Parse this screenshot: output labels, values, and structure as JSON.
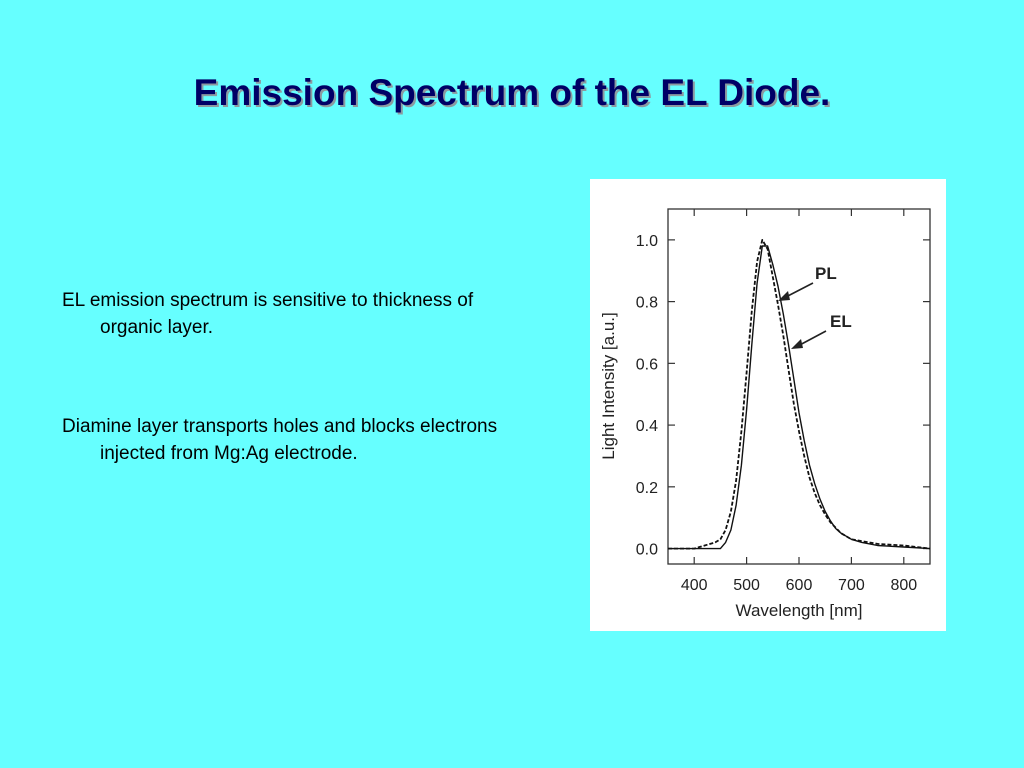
{
  "slide": {
    "title": "Emission Spectrum of the EL Diode.",
    "bullets": [
      "EL emission spectrum is sensitive to thickness of organic layer.",
      "Diamine layer transports holes and blocks electrons injected from Mg:Ag electrode."
    ]
  },
  "colors": {
    "background": "#66ffff",
    "title": "#000066"
  },
  "chart_data": {
    "type": "line",
    "xlabel": "Wavelength [nm]",
    "ylabel": "Light Intensity [a.u.]",
    "xlim": [
      350,
      850
    ],
    "ylim": [
      -0.05,
      1.1
    ],
    "xticks": [
      400,
      500,
      600,
      700,
      800
    ],
    "yticks": [
      0.0,
      0.2,
      0.4,
      0.6,
      0.8,
      1.0
    ],
    "ytick_labels": [
      "0.0",
      "0.2",
      "0.4",
      "0.6",
      "0.8",
      "1.0"
    ],
    "series": [
      {
        "name": "PL",
        "style": "solid",
        "x": [
          350,
          450,
          460,
          470,
          480,
          490,
          500,
          510,
          520,
          530,
          540,
          550,
          560,
          570,
          580,
          590,
          600,
          610,
          620,
          630,
          640,
          650,
          660,
          670,
          680,
          690,
          700,
          720,
          750,
          800,
          850
        ],
        "y": [
          0.0,
          0.0,
          0.02,
          0.06,
          0.14,
          0.27,
          0.45,
          0.66,
          0.86,
          0.98,
          0.98,
          0.92,
          0.85,
          0.76,
          0.66,
          0.55,
          0.44,
          0.35,
          0.27,
          0.21,
          0.16,
          0.12,
          0.09,
          0.065,
          0.05,
          0.04,
          0.03,
          0.02,
          0.01,
          0.005,
          0.0
        ]
      },
      {
        "name": "EL",
        "style": "dashed",
        "x": [
          350,
          400,
          420,
          440,
          450,
          460,
          470,
          480,
          490,
          500,
          510,
          520,
          530,
          540,
          550,
          560,
          570,
          580,
          590,
          600,
          610,
          620,
          630,
          640,
          650,
          660,
          680,
          700,
          750,
          800,
          850
        ],
        "y": [
          0.0,
          0.0,
          0.01,
          0.02,
          0.03,
          0.06,
          0.12,
          0.22,
          0.38,
          0.57,
          0.77,
          0.93,
          1.0,
          0.97,
          0.88,
          0.79,
          0.69,
          0.58,
          0.47,
          0.38,
          0.3,
          0.23,
          0.18,
          0.14,
          0.11,
          0.085,
          0.05,
          0.03,
          0.015,
          0.01,
          0.0
        ]
      }
    ],
    "annotations": [
      "PL",
      "EL"
    ]
  }
}
